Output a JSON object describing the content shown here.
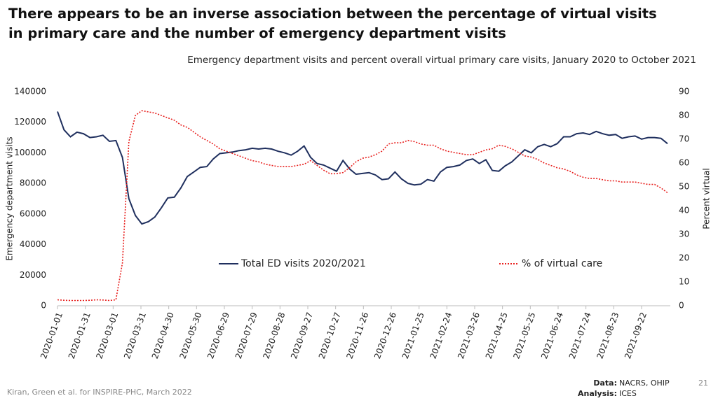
{
  "chart_data": {
    "type": "line",
    "title": "There appears to be an inverse association between the percentage of virtual visits in primary care and the number of emergency department visits",
    "subtitle": "Emergency department visits and percent overall virtual primary care visits, January 2020 to October 2021",
    "y_label": "Emergency department visits",
    "y2_label": "Percent virtual",
    "x": [
      "2020-01-01",
      "2020-01-08",
      "2020-01-15",
      "2020-01-22",
      "2020-01-29",
      "2020-02-05",
      "2020-02-12",
      "2020-02-19",
      "2020-02-26",
      "2020-03-04",
      "2020-03-11",
      "2020-03-18",
      "2020-03-25",
      "2020-04-01",
      "2020-04-08",
      "2020-04-15",
      "2020-04-22",
      "2020-04-29",
      "2020-05-06",
      "2020-05-13",
      "2020-05-20",
      "2020-05-27",
      "2020-06-03",
      "2020-06-10",
      "2020-06-17",
      "2020-06-24",
      "2020-07-01",
      "2020-07-08",
      "2020-07-15",
      "2020-07-22",
      "2020-07-29",
      "2020-08-05",
      "2020-08-12",
      "2020-08-19",
      "2020-08-26",
      "2020-09-02",
      "2020-09-09",
      "2020-09-16",
      "2020-09-23",
      "2020-09-30",
      "2020-10-07",
      "2020-10-14",
      "2020-10-21",
      "2020-10-28",
      "2020-11-04",
      "2020-11-11",
      "2020-11-18",
      "2020-11-25",
      "2020-12-02",
      "2020-12-09",
      "2020-12-16",
      "2020-12-23",
      "2020-12-30",
      "2021-01-06",
      "2021-01-13",
      "2021-01-20",
      "2021-01-27",
      "2021-02-03",
      "2021-02-10",
      "2021-02-17",
      "2021-02-24",
      "2021-03-03",
      "2021-03-10",
      "2021-03-17",
      "2021-03-24",
      "2021-03-31",
      "2021-04-07",
      "2021-04-14",
      "2021-04-21",
      "2021-04-28",
      "2021-05-05",
      "2021-05-12",
      "2021-05-19",
      "2021-05-26",
      "2021-06-02",
      "2021-06-09",
      "2021-06-16",
      "2021-06-23",
      "2021-06-30",
      "2021-07-07",
      "2021-07-14",
      "2021-07-21",
      "2021-07-28",
      "2021-08-04",
      "2021-08-11",
      "2021-08-18",
      "2021-08-25",
      "2021-09-01",
      "2021-09-08",
      "2021-09-15",
      "2021-09-22",
      "2021-09-29",
      "2021-10-06",
      "2021-10-13",
      "2021-10-20"
    ],
    "series": [
      {
        "name": "Total ED visits 2020/2021",
        "color": "#1f2f5e",
        "dash": "solid",
        "values": [
          127000,
          115000,
          110500,
          113500,
          112500,
          110000,
          110500,
          111500,
          107500,
          108000,
          97000,
          70000,
          59000,
          53500,
          55000,
          58000,
          64000,
          70500,
          71000,
          77000,
          84500,
          87500,
          90500,
          91000,
          96000,
          99500,
          100000,
          100500,
          101500,
          102000,
          103000,
          102500,
          103000,
          102500,
          101000,
          100000,
          98500,
          101000,
          104500,
          97000,
          93000,
          92000,
          90000,
          88000,
          95000,
          89500,
          86000,
          86500,
          87000,
          85500,
          82500,
          83000,
          87500,
          83000,
          80000,
          79000,
          79500,
          82500,
          81500,
          87500,
          90500,
          91000,
          92000,
          95000,
          96000,
          93000,
          95500,
          88500,
          88000,
          91500,
          94000,
          98000,
          102000,
          100000,
          104000,
          105500,
          104000,
          106000,
          110500,
          110500,
          112500,
          113000,
          112000,
          114000,
          112500,
          111500,
          112000,
          109500,
          110500,
          111000,
          109000,
          110000,
          110000,
          109500,
          106000
        ]
      },
      {
        "name": "% of virtual care",
        "color": "#e8201e",
        "dash": "dotted",
        "axis": "y2",
        "values": [
          2.5,
          2.3,
          2.2,
          2.2,
          2.2,
          2.3,
          2.5,
          2.4,
          2.2,
          2.5,
          18,
          69,
          80,
          82,
          81.5,
          81,
          80,
          79,
          78,
          76,
          75,
          73,
          71,
          69.5,
          68,
          66,
          65,
          64,
          63,
          62,
          61,
          60.5,
          59.5,
          59,
          58.5,
          58.5,
          58.5,
          59,
          59.5,
          61,
          59,
          57,
          55.5,
          55.5,
          56,
          58,
          60.5,
          62,
          62.5,
          63.5,
          65,
          68,
          68.5,
          68.5,
          69.5,
          69,
          68,
          67.5,
          67.5,
          66,
          65,
          64.5,
          64,
          63.5,
          63.5,
          64.5,
          65.5,
          66,
          67.5,
          67,
          66,
          64.5,
          63,
          62.5,
          61.5,
          60,
          59,
          58,
          57.5,
          56.5,
          55,
          54,
          53.5,
          53.5,
          53,
          52.5,
          52.5,
          52,
          52,
          52,
          51.5,
          51,
          51,
          49.5,
          47.5
        ]
      }
    ],
    "xlim": [
      "2020-01-01",
      "2021-10-20"
    ],
    "xticks": [
      "2020-01-01",
      "2020-01-31",
      "2020-03-01",
      "2020-03-31",
      "2020-04-30",
      "2020-05-30",
      "2020-06-29",
      "2020-07-29",
      "2020-08-28",
      "2020-09-27",
      "2020-10-27",
      "2020-11-26",
      "2020-12-26",
      "2021-01-25",
      "2021-02-24",
      "2021-03-26",
      "2021-04-25",
      "2021-05-25",
      "2021-06-24",
      "2021-07-24",
      "2021-08-23",
      "2021-09-22"
    ],
    "ylim": [
      0,
      140000
    ],
    "yticks": [
      0,
      20000,
      40000,
      60000,
      80000,
      100000,
      120000,
      140000
    ],
    "y2lim": [
      0,
      90
    ],
    "y2ticks": [
      0,
      10,
      20,
      30,
      40,
      50,
      60,
      70,
      80,
      90
    ],
    "grid": false
  },
  "footer": {
    "credit": "Kiran, Green et al. for INSPIRE-PHC, March 2022",
    "data_key": "Data:",
    "data_value": "NACRS, OHIP",
    "analysis_key": "Analysis:",
    "analysis_value": "ICES",
    "page_number": "21"
  }
}
